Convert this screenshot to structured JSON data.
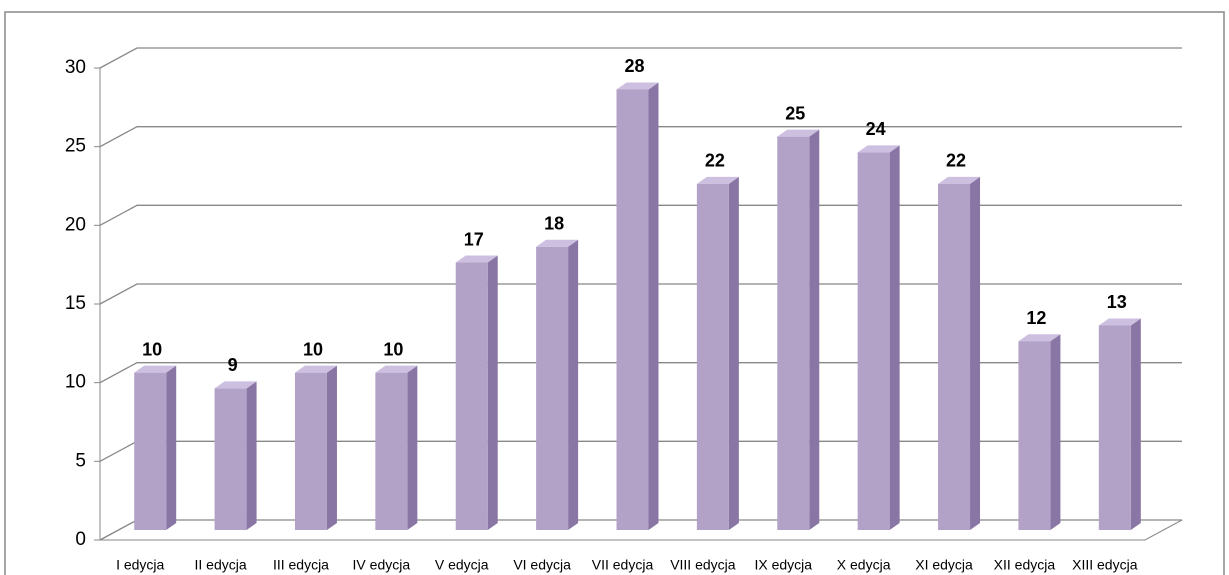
{
  "chart_data": {
    "type": "bar",
    "categories": [
      "I edycja",
      "II edycja",
      "III edycja",
      "IV edycja",
      "V edycja",
      "VI edycja",
      "VII edycja",
      "VIII edycja",
      "IX edycja",
      "X edycja",
      "XI edycja",
      "XII edycja",
      "XIII edycja"
    ],
    "values": [
      10,
      9,
      10,
      10,
      17,
      18,
      28,
      22,
      25,
      24,
      22,
      12,
      13
    ],
    "color": "#b3a2c7",
    "ylim": [
      0,
      30
    ],
    "yticks": [
      0,
      5,
      10,
      15,
      20,
      25,
      30
    ],
    "grid": true
  }
}
